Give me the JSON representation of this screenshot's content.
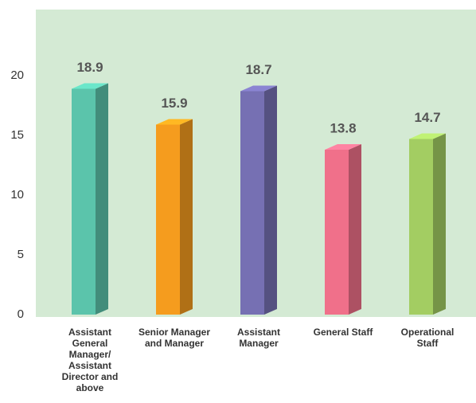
{
  "chart_data": {
    "type": "bar3d",
    "categories": [
      "Assistant General Manager/ Assistant Director and above",
      "Senior Manager and Manager",
      "Assistant Manager",
      "General Staff",
      "Operational Staff"
    ],
    "values": [
      18.9,
      15.9,
      18.7,
      13.8,
      14.7
    ],
    "colors": [
      "#5bc4ab",
      "#f59c1e",
      "#7670b3",
      "#f0708a",
      "#a3cd62"
    ],
    "ylim": [
      0,
      25
    ],
    "yticks": [
      0,
      5,
      10,
      15,
      20
    ],
    "background": "#d4ead4"
  }
}
